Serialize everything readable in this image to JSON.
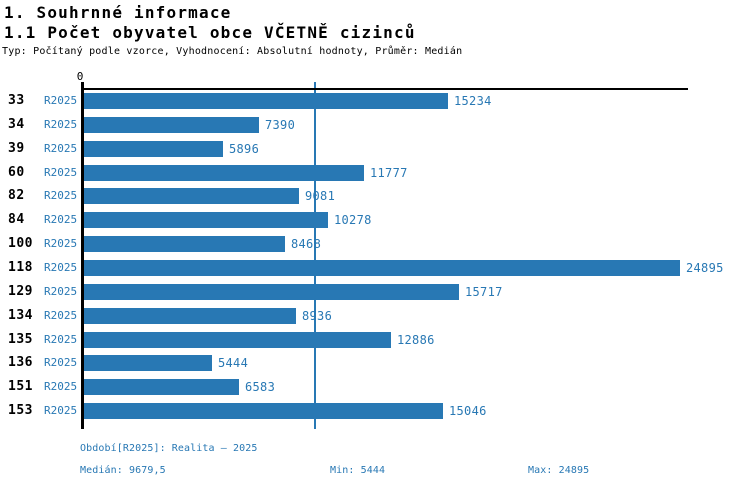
{
  "page": {
    "title": "1. Souhrnné informace",
    "subtitle": "1.1 Počet obyvatel obce VČETNĚ cizinců",
    "meta": "Typ: Počítaný podle vzorce, Vyhodnocení: Absolutní hodnoty, Průměr: Medián"
  },
  "chart_data": {
    "type": "bar",
    "orientation": "horizontal",
    "series_label": "R2025",
    "categories": [
      "33",
      "34",
      "39",
      "60",
      "82",
      "84",
      "100",
      "118",
      "129",
      "134",
      "135",
      "136",
      "151",
      "153"
    ],
    "values": [
      15234,
      7390,
      5896,
      11777,
      9081,
      10278,
      8468,
      24895,
      15717,
      8936,
      12886,
      5444,
      6583,
      15046
    ],
    "axis_zero_label": "0",
    "median_value": 9679.5,
    "min_value": 5444,
    "max_value": 24895,
    "xlim": [
      0,
      25200
    ],
    "colors": {
      "bar": "#2878b4",
      "label": "#2878b4",
      "median_line": "#2878b4",
      "axis": "#000000"
    }
  },
  "footer": {
    "period": "Období[R2025]: Realita – 2025",
    "median": "Medián: 9679,5",
    "min": "Min: 5444",
    "max": "Max: 24895"
  }
}
